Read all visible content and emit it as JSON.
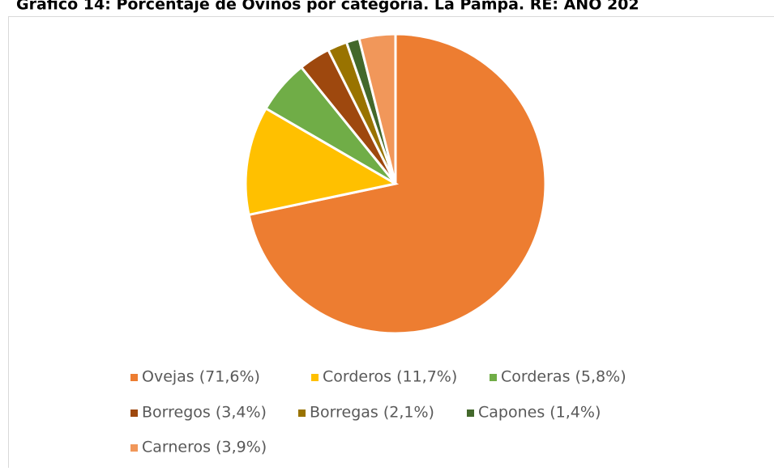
{
  "chart_data": {
    "type": "pie",
    "title": "Gráfico 14: Porcentaje de Ovinos por categoría. La Pampa. RE: AÑO 202",
    "categories": [
      "Ovejas (71,6%)",
      "Corderos (11,7%)",
      "Corderas (5,8%)",
      "Borregos (3,4%)",
      "Borregas (2,1%)",
      "Capones (1,4%)",
      "Carneros (3,9%)"
    ],
    "values": [
      71.6,
      11.7,
      5.8,
      3.4,
      2.1,
      1.4,
      3.9
    ],
    "colors": [
      "#ED7D31",
      "#FFC000",
      "#70AD47",
      "#9E480E",
      "#997300",
      "#43682B",
      "#F1975A"
    ],
    "legend": "bottom"
  }
}
